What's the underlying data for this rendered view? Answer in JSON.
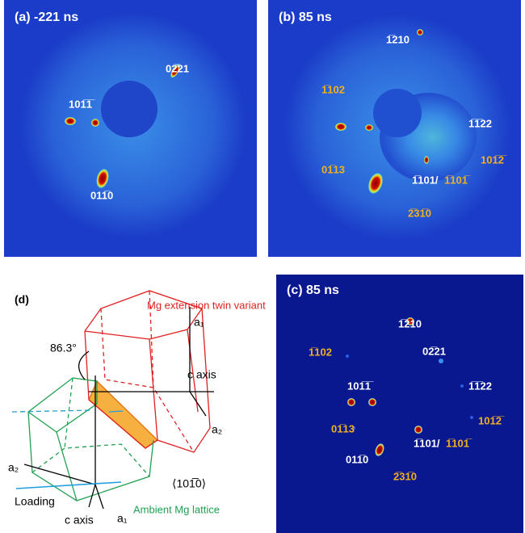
{
  "panels": [
    {
      "title": "(a) -221 ns",
      "labels": [
        "02̅21",
        "101̅1̅",
        "011̅0"
      ]
    },
    {
      "title": "(b) 85 ns",
      "labels": [
        "1̅210",
        "1̅102",
        "1̅1̅22",
        "101̅2̅",
        "01̅13",
        "1̅101/",
        "1̅101̅",
        "2̅31̅0"
      ]
    },
    {
      "title": "(c) 85 ns",
      "labels": [
        "1̅210",
        "1̅102",
        "02̅21",
        "101̅1̅",
        "1̅1̅22",
        "101̅2̅",
        "01̅13",
        "1̅101/",
        "1̅101̅",
        "011̅0",
        "2̅31̅0"
      ]
    }
  ],
  "diagram": {
    "label": "(d)",
    "twin_title": "Mg extension twin variant",
    "angle": "86.3°",
    "texts": [
      "a₁",
      "c axis",
      "a₂",
      "a₂",
      "Loading",
      "c axis",
      "a₁",
      "⟨101̅0⟩",
      "Ambient Mg lattice"
    ]
  }
}
